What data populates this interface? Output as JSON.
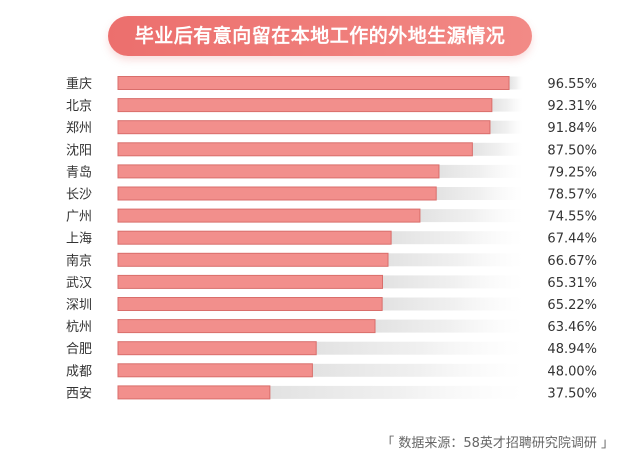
{
  "chart_data": {
    "type": "bar",
    "orientation": "horizontal",
    "title": "毕业后有意向留在本地工作的外地生源情况",
    "categories": [
      "重庆",
      "北京",
      "郑州",
      "沈阳",
      "青岛",
      "长沙",
      "广州",
      "上海",
      "南京",
      "武汉",
      "深圳",
      "杭州",
      "合肥",
      "成都",
      "西安"
    ],
    "values": [
      96.55,
      92.31,
      91.84,
      87.5,
      79.25,
      78.57,
      74.55,
      67.44,
      66.67,
      65.31,
      65.22,
      63.46,
      48.94,
      48.0,
      37.5
    ],
    "value_labels": [
      "96.55%",
      "92.31%",
      "91.84%",
      "87.50%",
      "79.25%",
      "78.57%",
      "74.55%",
      "67.44%",
      "66.67%",
      "65.31%",
      "65.22%",
      "63.46%",
      "48.94%",
      "48.00%",
      "37.50%"
    ],
    "xlim": [
      0,
      100
    ],
    "source": "「 数据来源：58英才招聘研究院调研 」",
    "bar_color": "#f28f8c",
    "bar_border": "#d96e6b",
    "track_color": "#e6e6e6"
  }
}
